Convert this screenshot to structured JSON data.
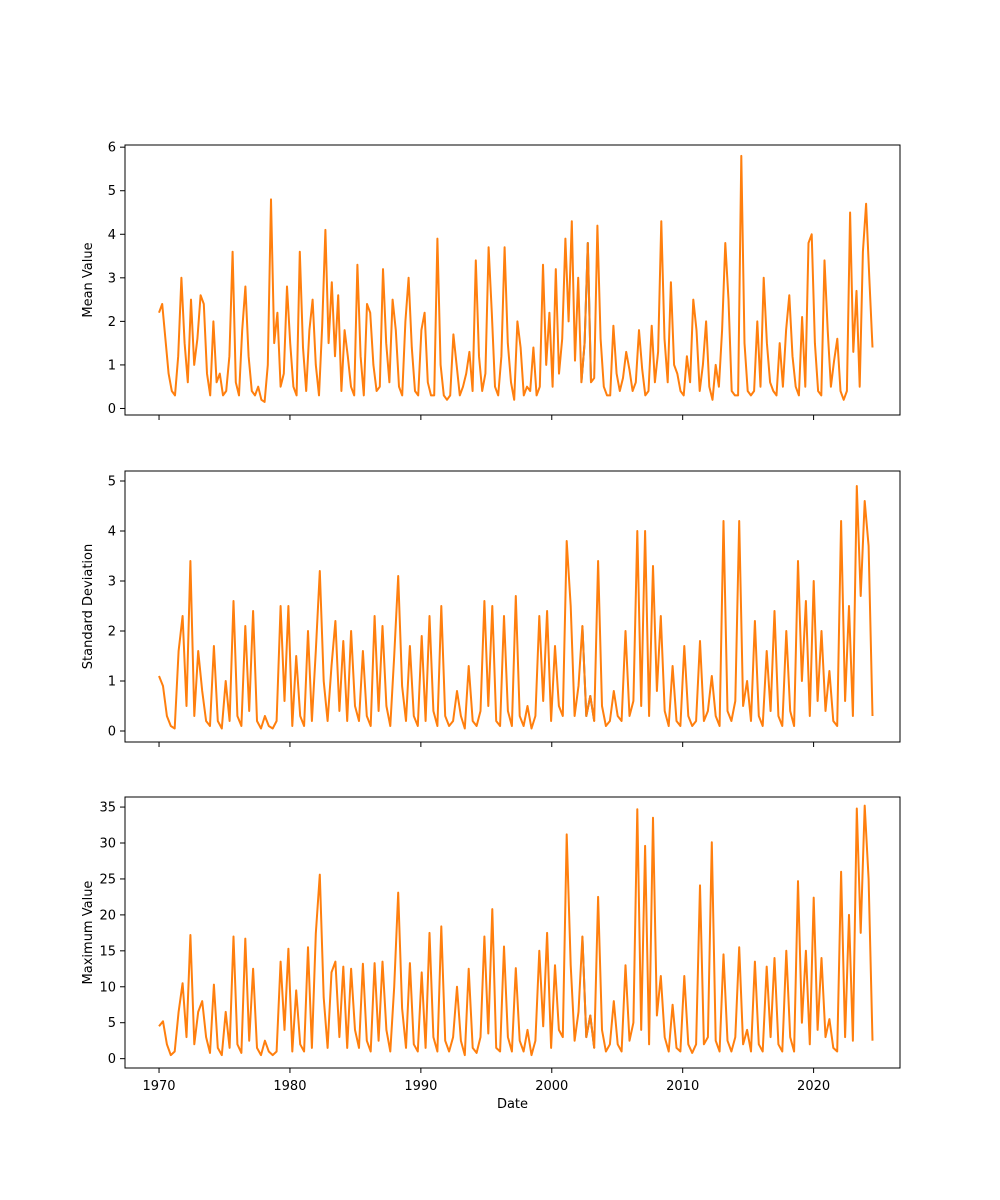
{
  "colors": {
    "series_a": "#1f77b4",
    "series_b": "#ff7f0e",
    "axes": "#000000",
    "background": "#ffffff"
  },
  "chart_data": [
    {
      "type": "line",
      "title": "",
      "xlabel": "",
      "ylabel": "Mean Value",
      "xlim": [
        1967.4,
        2026.6
      ],
      "ylim": [
        -0.15,
        6.05
      ],
      "xticks": [
        1970,
        1980,
        1990,
        2000,
        2010,
        2020
      ],
      "xtick_labels_visible": false,
      "yticks": [
        0,
        1,
        2,
        3,
        4,
        5,
        6
      ],
      "grid": false,
      "legend": "none",
      "note_series": "monthly statistics; short blue segment around 2002-2003 otherwise overlaid by orange",
      "series": [
        {
          "values_year_start": 1970,
          "values": [
            2.2,
            2.4,
            1.6,
            0.8,
            0.4,
            0.3,
            1.2,
            3.0,
            1.5,
            0.6,
            2.5,
            1.0,
            1.6,
            2.6,
            2.4,
            0.8,
            0.3,
            2.0,
            0.6,
            0.8,
            0.3,
            0.4,
            1.2,
            3.6,
            0.6,
            0.3,
            1.8,
            2.8,
            1.2,
            0.4,
            0.3,
            0.5,
            0.2,
            0.15,
            1.0,
            4.8,
            1.5,
            2.2,
            0.5,
            0.8,
            2.8,
            1.5,
            0.5,
            0.3,
            3.6,
            1.4,
            0.4,
            1.8,
            2.5,
            1.0,
            0.3,
            1.9,
            4.1,
            1.5,
            2.9,
            1.2,
            2.6,
            0.4,
            1.8,
            1.2,
            0.5,
            0.3,
            3.3,
            1.2,
            0.3,
            2.4,
            2.2,
            1.0,
            0.4,
            0.5,
            3.2,
            1.5,
            0.6,
            2.5,
            1.8,
            0.5,
            0.3,
            2.0,
            3.0,
            1.4,
            0.4,
            0.3,
            1.8,
            2.2,
            0.6,
            0.3,
            0.3,
            3.9,
            1.0,
            0.3,
            0.2,
            0.3,
            1.7,
            1.0,
            0.3,
            0.5,
            0.8,
            1.3,
            0.4,
            3.4,
            1.2,
            0.4,
            0.8,
            3.7,
            2.2,
            0.5,
            0.3,
            1.2,
            3.7,
            1.5,
            0.6,
            0.2,
            2.0,
            1.4,
            0.3,
            0.5,
            0.4,
            1.4,
            0.3,
            0.5,
            3.3,
            1.0,
            2.2,
            0.5,
            3.2,
            0.8,
            1.6,
            3.9,
            2.0,
            4.3,
            1.1,
            3.0,
            0.6,
            1.5,
            3.8,
            0.6,
            0.7,
            4.2,
            1.6,
            0.5,
            0.3,
            0.3,
            1.9,
            0.8,
            0.4,
            0.7,
            1.3,
            0.9,
            0.4,
            0.6,
            1.8,
            0.9,
            0.3,
            0.4,
            1.9,
            0.6,
            1.3,
            4.3,
            1.6,
            0.6,
            2.9,
            1.0,
            0.8,
            0.4,
            0.3,
            1.2,
            0.6,
            2.5,
            1.8,
            0.4,
            1.0,
            2.0,
            0.5,
            0.2,
            1.0,
            0.5,
            1.8,
            3.8,
            2.5,
            0.4,
            0.3,
            0.3,
            5.8,
            1.5,
            0.4,
            0.3,
            0.4,
            2.0,
            0.5,
            3.0,
            1.5,
            0.6,
            0.4,
            0.3,
            1.5,
            0.5,
            1.8,
            2.6,
            1.2,
            0.5,
            0.3,
            2.1,
            0.5,
            3.8,
            4.0,
            1.5,
            0.4,
            0.3,
            3.4,
            1.8,
            0.5,
            1.1,
            1.6,
            0.4,
            0.2,
            0.4,
            4.5,
            1.3,
            2.7,
            0.5,
            3.6,
            4.7,
            3.0,
            1.4
          ]
        }
      ]
    },
    {
      "type": "line",
      "title": "",
      "xlabel": "",
      "ylabel": "Standard Deviation",
      "xlim": [
        1967.4,
        2026.6
      ],
      "ylim": [
        -0.22,
        5.2
      ],
      "xticks": [
        1970,
        1980,
        1990,
        2000,
        2010,
        2020
      ],
      "xtick_labels_visible": false,
      "yticks": [
        0,
        1,
        2,
        3,
        4,
        5
      ],
      "grid": false,
      "legend": "none",
      "series": [
        {
          "values_year_start": 1970,
          "values": [
            1.1,
            0.9,
            0.3,
            0.1,
            0.05,
            1.6,
            2.3,
            0.5,
            3.4,
            0.3,
            1.6,
            0.8,
            0.2,
            0.1,
            1.7,
            0.2,
            0.05,
            1.0,
            0.2,
            2.6,
            0.3,
            0.1,
            2.1,
            0.4,
            2.4,
            0.2,
            0.05,
            0.3,
            0.1,
            0.05,
            0.2,
            2.5,
            0.6,
            2.5,
            0.1,
            1.5,
            0.3,
            0.1,
            2.0,
            0.2,
            1.6,
            3.2,
            1.0,
            0.2,
            1.3,
            2.2,
            0.4,
            1.8,
            0.2,
            2.0,
            0.5,
            0.2,
            1.6,
            0.3,
            0.1,
            2.3,
            0.4,
            2.1,
            0.5,
            0.1,
            1.5,
            3.1,
            0.9,
            0.2,
            1.7,
            0.3,
            0.1,
            1.9,
            0.2,
            2.3,
            0.4,
            0.1,
            2.5,
            0.3,
            0.1,
            0.2,
            0.8,
            0.3,
            0.05,
            1.3,
            0.2,
            0.1,
            0.4,
            2.6,
            0.5,
            2.5,
            0.2,
            0.1,
            2.3,
            0.4,
            0.1,
            2.7,
            0.3,
            0.1,
            0.5,
            0.05,
            0.3,
            2.3,
            0.6,
            2.4,
            0.2,
            1.7,
            0.5,
            0.3,
            3.8,
            2.5,
            0.3,
            0.9,
            2.1,
            0.3,
            0.7,
            0.2,
            3.4,
            0.5,
            0.1,
            0.2,
            0.8,
            0.3,
            0.2,
            2.0,
            0.3,
            0.6,
            4.0,
            0.5,
            4.0,
            0.3,
            3.3,
            0.8,
            2.3,
            0.4,
            0.1,
            1.3,
            0.2,
            0.1,
            1.7,
            0.3,
            0.1,
            0.2,
            1.8,
            0.2,
            0.4,
            1.1,
            0.3,
            0.1,
            4.2,
            0.4,
            0.2,
            0.6,
            4.2,
            0.5,
            1.0,
            0.2,
            2.2,
            0.3,
            0.1,
            1.6,
            0.4,
            2.4,
            0.3,
            0.1,
            2.0,
            0.4,
            0.1,
            3.4,
            1.0,
            2.6,
            0.3,
            3.0,
            0.6,
            2.0,
            0.4,
            1.2,
            0.2,
            0.1,
            4.2,
            0.6,
            2.5,
            0.3,
            4.9,
            2.7,
            4.6,
            3.7,
            0.3
          ]
        }
      ]
    },
    {
      "type": "line",
      "title": "",
      "xlabel": "Date",
      "ylabel": "Maximum Value",
      "xlim": [
        1967.4,
        2026.6
      ],
      "ylim": [
        -1.3,
        36.4
      ],
      "xticks": [
        1970,
        1980,
        1990,
        2000,
        2010,
        2020
      ],
      "xtick_labels_visible": true,
      "yticks": [
        0,
        5,
        10,
        15,
        20,
        25,
        30,
        35
      ],
      "grid": false,
      "legend": "none",
      "series": [
        {
          "values_year_start": 1970,
          "values": [
            4.5,
            5.2,
            2.0,
            0.5,
            1.0,
            6.5,
            10.5,
            3.0,
            17.2,
            2.0,
            6.5,
            8.0,
            3.0,
            0.8,
            10.3,
            1.5,
            0.5,
            6.5,
            1.5,
            17.0,
            2.0,
            0.8,
            16.7,
            2.5,
            12.5,
            1.5,
            0.5,
            2.5,
            1.0,
            0.5,
            1.0,
            13.5,
            4.0,
            15.3,
            1.0,
            9.5,
            2.0,
            1.0,
            15.5,
            1.5,
            17.4,
            25.6,
            8.5,
            1.5,
            12.0,
            13.5,
            3.0,
            12.8,
            1.5,
            12.5,
            4.0,
            1.5,
            13.2,
            2.5,
            1.0,
            13.3,
            2.5,
            13.5,
            4.0,
            1.0,
            10.0,
            23.1,
            7.0,
            1.5,
            13.3,
            2.0,
            1.0,
            12.0,
            1.5,
            17.5,
            3.0,
            1.0,
            18.4,
            2.5,
            1.0,
            3.0,
            10.0,
            2.5,
            0.5,
            12.5,
            1.5,
            0.8,
            3.0,
            17.0,
            3.5,
            20.8,
            1.5,
            1.0,
            15.6,
            3.0,
            1.0,
            12.6,
            2.5,
            1.0,
            4.0,
            0.5,
            2.5,
            15.0,
            4.5,
            17.5,
            1.5,
            13.0,
            4.0,
            3.0,
            31.2,
            13.0,
            2.5,
            6.5,
            17.0,
            3.0,
            6.0,
            1.5,
            22.5,
            4.0,
            1.0,
            2.0,
            8.0,
            2.0,
            1.0,
            13.0,
            2.5,
            5.0,
            34.7,
            4.0,
            29.6,
            2.0,
            33.5,
            6.0,
            11.5,
            3.0,
            1.0,
            7.5,
            1.5,
            1.0,
            11.5,
            2.0,
            0.8,
            2.0,
            24.1,
            2.0,
            3.0,
            30.1,
            2.5,
            1.0,
            14.5,
            2.5,
            1.0,
            3.0,
            15.5,
            2.0,
            4.0,
            1.0,
            13.5,
            2.0,
            1.0,
            12.8,
            3.0,
            14.0,
            2.0,
            1.0,
            15.0,
            3.0,
            1.0,
            24.7,
            5.0,
            15.0,
            2.0,
            22.4,
            4.0,
            14.0,
            3.0,
            5.5,
            1.5,
            1.0,
            26.0,
            3.0,
            20.0,
            2.5,
            34.8,
            17.5,
            35.2,
            25.0,
            2.5
          ]
        }
      ]
    }
  ]
}
